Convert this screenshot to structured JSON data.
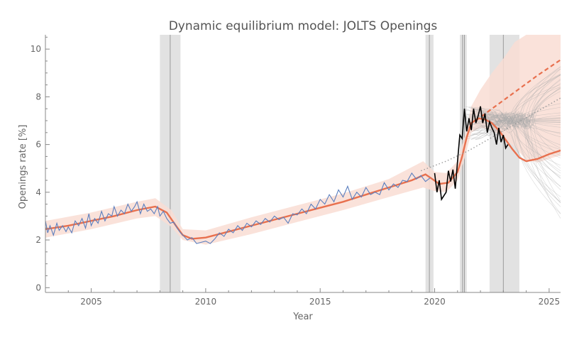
{
  "chart_data": {
    "type": "line",
    "title": "Dynamic equilibrium model: JOLTS Openings",
    "xlabel": "Year",
    "ylabel": "Openings rate [%]",
    "xlim": [
      2003.0,
      2025.5
    ],
    "ylim": [
      -0.2,
      10.6
    ],
    "x_ticks": [
      2005,
      2010,
      2015,
      2020,
      2025
    ],
    "y_ticks": [
      0,
      2,
      4,
      6,
      8,
      10
    ],
    "grid": false,
    "legend": "none",
    "colors": {
      "data_pre": "#5b7fbf",
      "data_post": "#000000",
      "model": "#e8704e",
      "band": "#f9ddd3",
      "recession": "#d8d8d8",
      "forecast_paths": "#aaaaaa",
      "dotted_trend": "#999999"
    },
    "shaded_regions": [
      {
        "x0": 2008.0,
        "x1": 2008.9
      },
      {
        "x0": 2019.6,
        "x1": 2019.95
      },
      {
        "x0": 2021.1,
        "x1": 2021.4
      },
      {
        "x0": 2022.4,
        "x1": 2023.7
      }
    ],
    "vertical_lines": [
      2008.45,
      2019.77,
      2021.22,
      2021.3,
      2023.0
    ],
    "series": [
      {
        "role": "model",
        "style": "solid",
        "x": [
          2003.0,
          2004.0,
          2005.0,
          2006.0,
          2007.0,
          2007.8,
          2008.3,
          2008.7,
          2009.0,
          2009.4,
          2010.0,
          2011.0,
          2012.0,
          2013.0,
          2014.0,
          2015.0,
          2016.0,
          2017.0,
          2018.0,
          2019.0,
          2019.6,
          2019.9,
          2020.2,
          2020.6,
          2021.0,
          2021.2,
          2021.4,
          2021.6,
          2021.9,
          2022.2,
          2022.5,
          2022.8,
          2023.1,
          2023.4,
          2023.7,
          2024.0,
          2024.5,
          2025.0,
          2025.5
        ],
        "y": [
          2.45,
          2.6,
          2.8,
          3.0,
          3.25,
          3.4,
          3.15,
          2.6,
          2.2,
          2.05,
          2.1,
          2.35,
          2.6,
          2.85,
          3.1,
          3.35,
          3.6,
          3.9,
          4.2,
          4.5,
          4.75,
          4.55,
          4.35,
          4.4,
          4.85,
          5.5,
          6.3,
          6.9,
          7.1,
          7.05,
          6.9,
          6.6,
          6.2,
          5.8,
          5.45,
          5.3,
          5.4,
          5.6,
          5.75
        ]
      },
      {
        "role": "model-forecast",
        "style": "dashed",
        "x": [
          2021.8,
          2022.5,
          2023.5,
          2024.5,
          2025.5
        ],
        "y": [
          7.0,
          7.5,
          8.2,
          8.9,
          9.55
        ]
      },
      {
        "role": "trend",
        "style": "dotted",
        "x": [
          2019.4,
          2020.5,
          2021.5,
          2022.5,
          2023.5,
          2024.5,
          2025.5
        ],
        "y": [
          4.9,
          5.3,
          5.75,
          6.3,
          6.85,
          7.4,
          7.95
        ]
      },
      {
        "role": "data",
        "x": [
          2003.0,
          2003.1,
          2003.2,
          2003.35,
          2003.5,
          2003.6,
          2003.75,
          2003.9,
          2004.0,
          2004.15,
          2004.3,
          2004.45,
          2004.6,
          2004.75,
          2004.9,
          2005.0,
          2005.15,
          2005.3,
          2005.45,
          2005.6,
          2005.75,
          2005.9,
          2006.0,
          2006.15,
          2006.3,
          2006.45,
          2006.6,
          2006.75,
          2006.9,
          2007.0,
          2007.15,
          2007.3,
          2007.45,
          2007.6,
          2007.75,
          2007.9,
          2008.0,
          2008.15,
          2008.3,
          2008.45,
          2008.6,
          2008.75,
          2008.9,
          2009.0,
          2009.2,
          2009.4,
          2009.6,
          2009.8,
          2010.0,
          2010.2,
          2010.4,
          2010.6,
          2010.8,
          2011.0,
          2011.2,
          2011.4,
          2011.6,
          2011.8,
          2012.0,
          2012.2,
          2012.4,
          2012.6,
          2012.8,
          2013.0,
          2013.2,
          2013.4,
          2013.6,
          2013.8,
          2014.0,
          2014.2,
          2014.4,
          2014.6,
          2014.8,
          2015.0,
          2015.2,
          2015.4,
          2015.6,
          2015.8,
          2016.0,
          2016.2,
          2016.4,
          2016.6,
          2016.8,
          2017.0,
          2017.2,
          2017.4,
          2017.6,
          2017.8,
          2018.0,
          2018.2,
          2018.4,
          2018.6,
          2018.8,
          2019.0,
          2019.2,
          2019.4,
          2019.6,
          2019.8
        ],
        "y": [
          2.8,
          2.3,
          2.6,
          2.2,
          2.7,
          2.4,
          2.6,
          2.35,
          2.55,
          2.3,
          2.8,
          2.6,
          2.9,
          2.5,
          3.1,
          2.6,
          2.9,
          2.7,
          3.2,
          2.8,
          3.1,
          3.0,
          3.4,
          3.0,
          3.25,
          3.1,
          3.5,
          3.2,
          3.4,
          3.6,
          3.1,
          3.5,
          3.2,
          3.3,
          3.1,
          3.4,
          3.0,
          3.2,
          2.9,
          2.7,
          2.75,
          2.5,
          2.3,
          2.2,
          2.0,
          2.1,
          1.85,
          1.9,
          1.95,
          1.85,
          2.05,
          2.3,
          2.15,
          2.45,
          2.3,
          2.6,
          2.4,
          2.7,
          2.55,
          2.8,
          2.65,
          2.9,
          2.75,
          3.0,
          2.85,
          2.95,
          2.7,
          3.1,
          3.05,
          3.3,
          3.1,
          3.5,
          3.3,
          3.7,
          3.5,
          3.9,
          3.6,
          4.1,
          3.8,
          4.25,
          3.7,
          4.0,
          3.8,
          4.2,
          3.9,
          4.0,
          3.9,
          4.4,
          4.1,
          4.35,
          4.2,
          4.5,
          4.45,
          4.8,
          4.55,
          4.7,
          4.45,
          4.6
        ]
      },
      {
        "role": "data-recent",
        "x": [
          2020.0,
          2020.1,
          2020.2,
          2020.3,
          2020.4,
          2020.5,
          2020.6,
          2020.7,
          2020.8,
          2020.9,
          2021.0,
          2021.1,
          2021.2,
          2021.3,
          2021.4,
          2021.5,
          2021.6,
          2021.7,
          2021.8,
          2021.9,
          2022.0,
          2022.1,
          2022.2,
          2022.3,
          2022.4,
          2022.5,
          2022.6,
          2022.7,
          2022.8,
          2022.9,
          2023.0,
          2023.1,
          2023.2
        ],
        "y": [
          4.8,
          4.0,
          4.5,
          3.7,
          3.85,
          4.0,
          4.9,
          4.45,
          4.95,
          4.15,
          5.3,
          6.4,
          6.25,
          7.5,
          6.55,
          7.1,
          6.6,
          7.5,
          6.9,
          7.2,
          7.6,
          6.9,
          7.3,
          6.5,
          6.95,
          6.7,
          6.5,
          6.0,
          6.7,
          6.1,
          6.4,
          5.85,
          6.0
        ]
      }
    ],
    "band": {
      "x": [
        2003.0,
        2005.0,
        2007.0,
        2007.8,
        2008.5,
        2009.0,
        2010.0,
        2012.0,
        2014.0,
        2016.0,
        2018.0,
        2019.5,
        2020.0,
        2020.5,
        2021.0,
        2021.3,
        2021.6,
        2022.0,
        2022.5,
        2023.0,
        2023.5,
        2024.0,
        2024.5,
        2025.0,
        2025.5
      ],
      "lower": [
        2.1,
        2.45,
        2.9,
        3.0,
        2.55,
        2.0,
        1.8,
        2.25,
        2.75,
        3.25,
        3.8,
        4.2,
        4.05,
        4.0,
        4.5,
        5.4,
        6.5,
        6.7,
        6.6,
        6.3,
        5.9,
        5.35,
        5.25,
        5.4,
        5.55
      ],
      "upper": [
        2.8,
        3.15,
        3.6,
        3.75,
        3.25,
        2.45,
        2.4,
        2.95,
        3.45,
        3.95,
        4.55,
        5.3,
        4.85,
        4.8,
        5.3,
        6.3,
        7.6,
        8.3,
        9.0,
        9.6,
        10.3,
        10.6,
        10.6,
        10.6,
        10.6
      ]
    }
  }
}
